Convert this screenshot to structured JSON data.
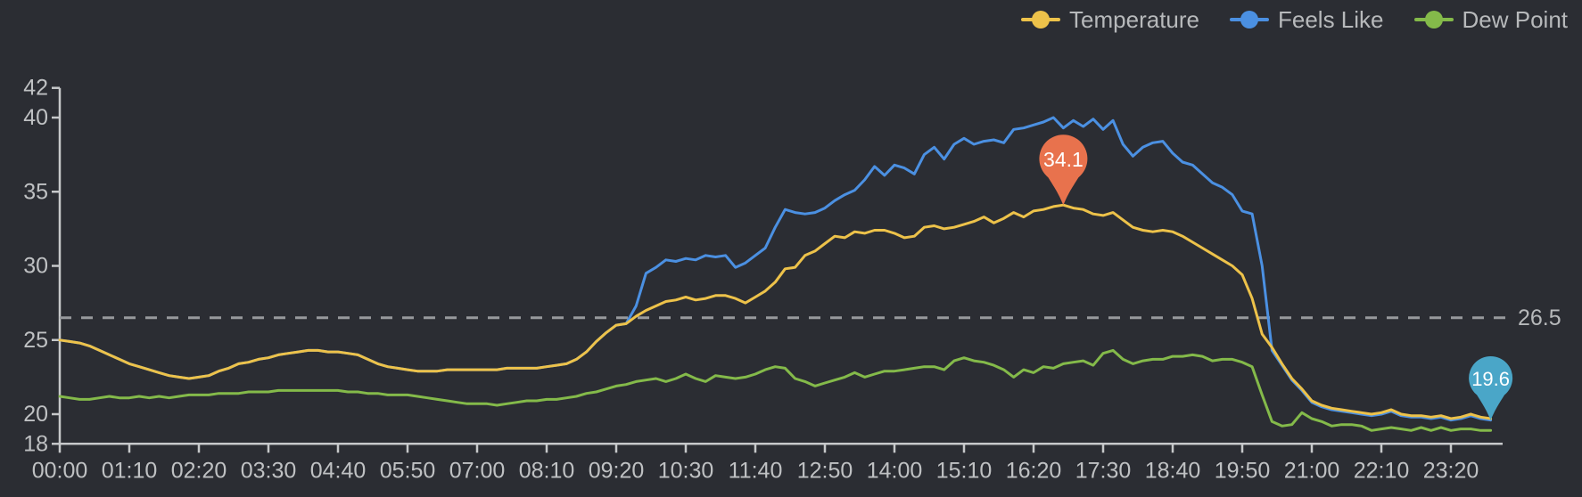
{
  "chart_data": {
    "type": "line",
    "title": "",
    "legend_position": "top-right",
    "grid": "off",
    "background_color": "#2b2d33",
    "x": {
      "unit": "time-of-day",
      "start": "00:00",
      "end": "24:00",
      "sample_interval_minutes": 10,
      "tick_interval_minutes": 70,
      "tick_labels": [
        "00:00",
        "01:10",
        "02:20",
        "03:30",
        "04:40",
        "05:50",
        "07:00",
        "08:10",
        "09:20",
        "10:30",
        "11:40",
        "12:50",
        "14:00",
        "15:10",
        "16:20",
        "17:30",
        "18:40",
        "19:50",
        "21:00",
        "22:10",
        "23:20"
      ]
    },
    "y": {
      "min": 18,
      "max": 42,
      "tick_values": [
        42,
        40,
        35,
        30,
        25,
        20,
        18
      ],
      "tick_labels": [
        "42",
        "40",
        "35",
        "30",
        "25",
        "20",
        "18"
      ]
    },
    "threshold_line": {
      "value": 26.5,
      "label": "26.5",
      "style": "dashed",
      "color": "#97999c",
      "label_color": "#b7b9bb"
    },
    "series": [
      {
        "name": "Temperature",
        "color": "#edc24a",
        "values": [
          25.0,
          24.9,
          24.8,
          24.6,
          24.3,
          24.0,
          23.7,
          23.4,
          23.2,
          23.0,
          22.8,
          22.6,
          22.5,
          22.4,
          22.5,
          22.6,
          22.9,
          23.1,
          23.4,
          23.5,
          23.7,
          23.8,
          24.0,
          24.1,
          24.2,
          24.3,
          24.3,
          24.2,
          24.2,
          24.1,
          24.0,
          23.7,
          23.4,
          23.2,
          23.1,
          23.0,
          22.9,
          22.9,
          22.9,
          23.0,
          23.0,
          23.0,
          23.0,
          23.0,
          23.0,
          23.1,
          23.1,
          23.1,
          23.1,
          23.2,
          23.3,
          23.4,
          23.7,
          24.2,
          24.9,
          25.5,
          26.0,
          26.1,
          26.6,
          27.0,
          27.3,
          27.6,
          27.7,
          27.9,
          27.7,
          27.8,
          28.0,
          28.0,
          27.8,
          27.5,
          27.9,
          28.3,
          28.9,
          29.8,
          29.9,
          30.7,
          31.0,
          31.5,
          32.0,
          31.9,
          32.3,
          32.2,
          32.4,
          32.4,
          32.2,
          31.9,
          32.0,
          32.6,
          32.7,
          32.5,
          32.6,
          32.8,
          33.0,
          33.3,
          32.9,
          33.2,
          33.6,
          33.3,
          33.7,
          33.8,
          34.0,
          34.1,
          33.9,
          33.8,
          33.5,
          33.4,
          33.6,
          33.1,
          32.6,
          32.4,
          32.3,
          32.4,
          32.3,
          32.0,
          31.6,
          31.2,
          30.8,
          30.4,
          30.0,
          29.4,
          27.8,
          25.4,
          24.5,
          23.4,
          22.4,
          21.7,
          20.9,
          20.6,
          20.4,
          20.3,
          20.2,
          20.1,
          20.0,
          20.1,
          20.3,
          20.0,
          19.9,
          19.9,
          19.8,
          19.9,
          19.7,
          19.8,
          20.0,
          19.8,
          19.7
        ]
      },
      {
        "name": "Feels Like",
        "color": "#4b90e2",
        "values": [
          25.0,
          24.9,
          24.8,
          24.6,
          24.3,
          24.0,
          23.7,
          23.4,
          23.2,
          23.0,
          22.8,
          22.6,
          22.5,
          22.4,
          22.5,
          22.6,
          22.9,
          23.1,
          23.4,
          23.5,
          23.7,
          23.8,
          24.0,
          24.1,
          24.2,
          24.3,
          24.3,
          24.2,
          24.2,
          24.1,
          24.0,
          23.7,
          23.4,
          23.2,
          23.1,
          23.0,
          22.9,
          22.9,
          22.9,
          23.0,
          23.0,
          23.0,
          23.0,
          23.0,
          23.0,
          23.1,
          23.1,
          23.1,
          23.1,
          23.2,
          23.3,
          23.4,
          23.7,
          24.2,
          24.9,
          25.5,
          26.0,
          26.1,
          27.3,
          29.5,
          29.9,
          30.4,
          30.3,
          30.5,
          30.4,
          30.7,
          30.6,
          30.7,
          29.9,
          30.2,
          30.7,
          31.2,
          32.6,
          33.8,
          33.6,
          33.5,
          33.6,
          33.9,
          34.4,
          34.8,
          35.1,
          35.8,
          36.7,
          36.1,
          36.8,
          36.6,
          36.2,
          37.5,
          38.0,
          37.2,
          38.2,
          38.6,
          38.2,
          38.4,
          38.5,
          38.3,
          39.2,
          39.3,
          39.5,
          39.7,
          40.0,
          39.3,
          39.8,
          39.4,
          39.9,
          39.2,
          39.8,
          38.2,
          37.4,
          38.0,
          38.3,
          38.4,
          37.6,
          37.0,
          36.8,
          36.2,
          35.6,
          35.3,
          34.8,
          33.7,
          33.5,
          30.0,
          24.3,
          23.3,
          22.3,
          21.6,
          20.8,
          20.5,
          20.3,
          20.2,
          20.1,
          20.0,
          19.9,
          20.0,
          20.2,
          19.9,
          19.8,
          19.8,
          19.7,
          19.8,
          19.6,
          19.7,
          19.9,
          19.7,
          19.6
        ]
      },
      {
        "name": "Dew Point",
        "color": "#84ba4a",
        "values": [
          21.2,
          21.1,
          21.0,
          21.0,
          21.1,
          21.2,
          21.1,
          21.1,
          21.2,
          21.1,
          21.2,
          21.1,
          21.2,
          21.3,
          21.3,
          21.3,
          21.4,
          21.4,
          21.4,
          21.5,
          21.5,
          21.5,
          21.6,
          21.6,
          21.6,
          21.6,
          21.6,
          21.6,
          21.6,
          21.5,
          21.5,
          21.4,
          21.4,
          21.3,
          21.3,
          21.3,
          21.2,
          21.1,
          21.0,
          20.9,
          20.8,
          20.7,
          20.7,
          20.7,
          20.6,
          20.7,
          20.8,
          20.9,
          20.9,
          21.0,
          21.0,
          21.1,
          21.2,
          21.4,
          21.5,
          21.7,
          21.9,
          22.0,
          22.2,
          22.3,
          22.4,
          22.2,
          22.4,
          22.7,
          22.4,
          22.2,
          22.6,
          22.5,
          22.4,
          22.5,
          22.7,
          23.0,
          23.2,
          23.1,
          22.4,
          22.2,
          21.9,
          22.1,
          22.3,
          22.5,
          22.8,
          22.5,
          22.7,
          22.9,
          22.9,
          23.0,
          23.1,
          23.2,
          23.2,
          23.0,
          23.6,
          23.8,
          23.6,
          23.5,
          23.3,
          23.0,
          22.5,
          23.0,
          22.8,
          23.2,
          23.1,
          23.4,
          23.5,
          23.6,
          23.3,
          24.1,
          24.3,
          23.7,
          23.4,
          23.6,
          23.7,
          23.7,
          23.9,
          23.9,
          24.0,
          23.9,
          23.6,
          23.7,
          23.7,
          23.5,
          23.2,
          21.3,
          19.5,
          19.2,
          19.3,
          20.1,
          19.7,
          19.5,
          19.2,
          19.3,
          19.3,
          19.2,
          18.9,
          19.0,
          19.1,
          19.0,
          18.9,
          19.1,
          18.9,
          19.1,
          18.9,
          19.0,
          19.0,
          18.9,
          18.9
        ]
      }
    ],
    "annotations": [
      {
        "series": "Temperature",
        "label": "34.1",
        "value": 34.1,
        "minute": 1010,
        "pin_color": "#e8724d",
        "text_color": "#ffffff"
      },
      {
        "series": "Feels Like",
        "label": "19.6",
        "value": 19.6,
        "minute": 1440,
        "pin_color": "#4aa6c8",
        "text_color": "#ffffff"
      }
    ],
    "axis_colors": {
      "axis_line": "#c6c8ca",
      "tick_text": "#bfc1c3"
    }
  },
  "legend": {
    "items": [
      "Temperature",
      "Feels Like",
      "Dew Point"
    ]
  }
}
